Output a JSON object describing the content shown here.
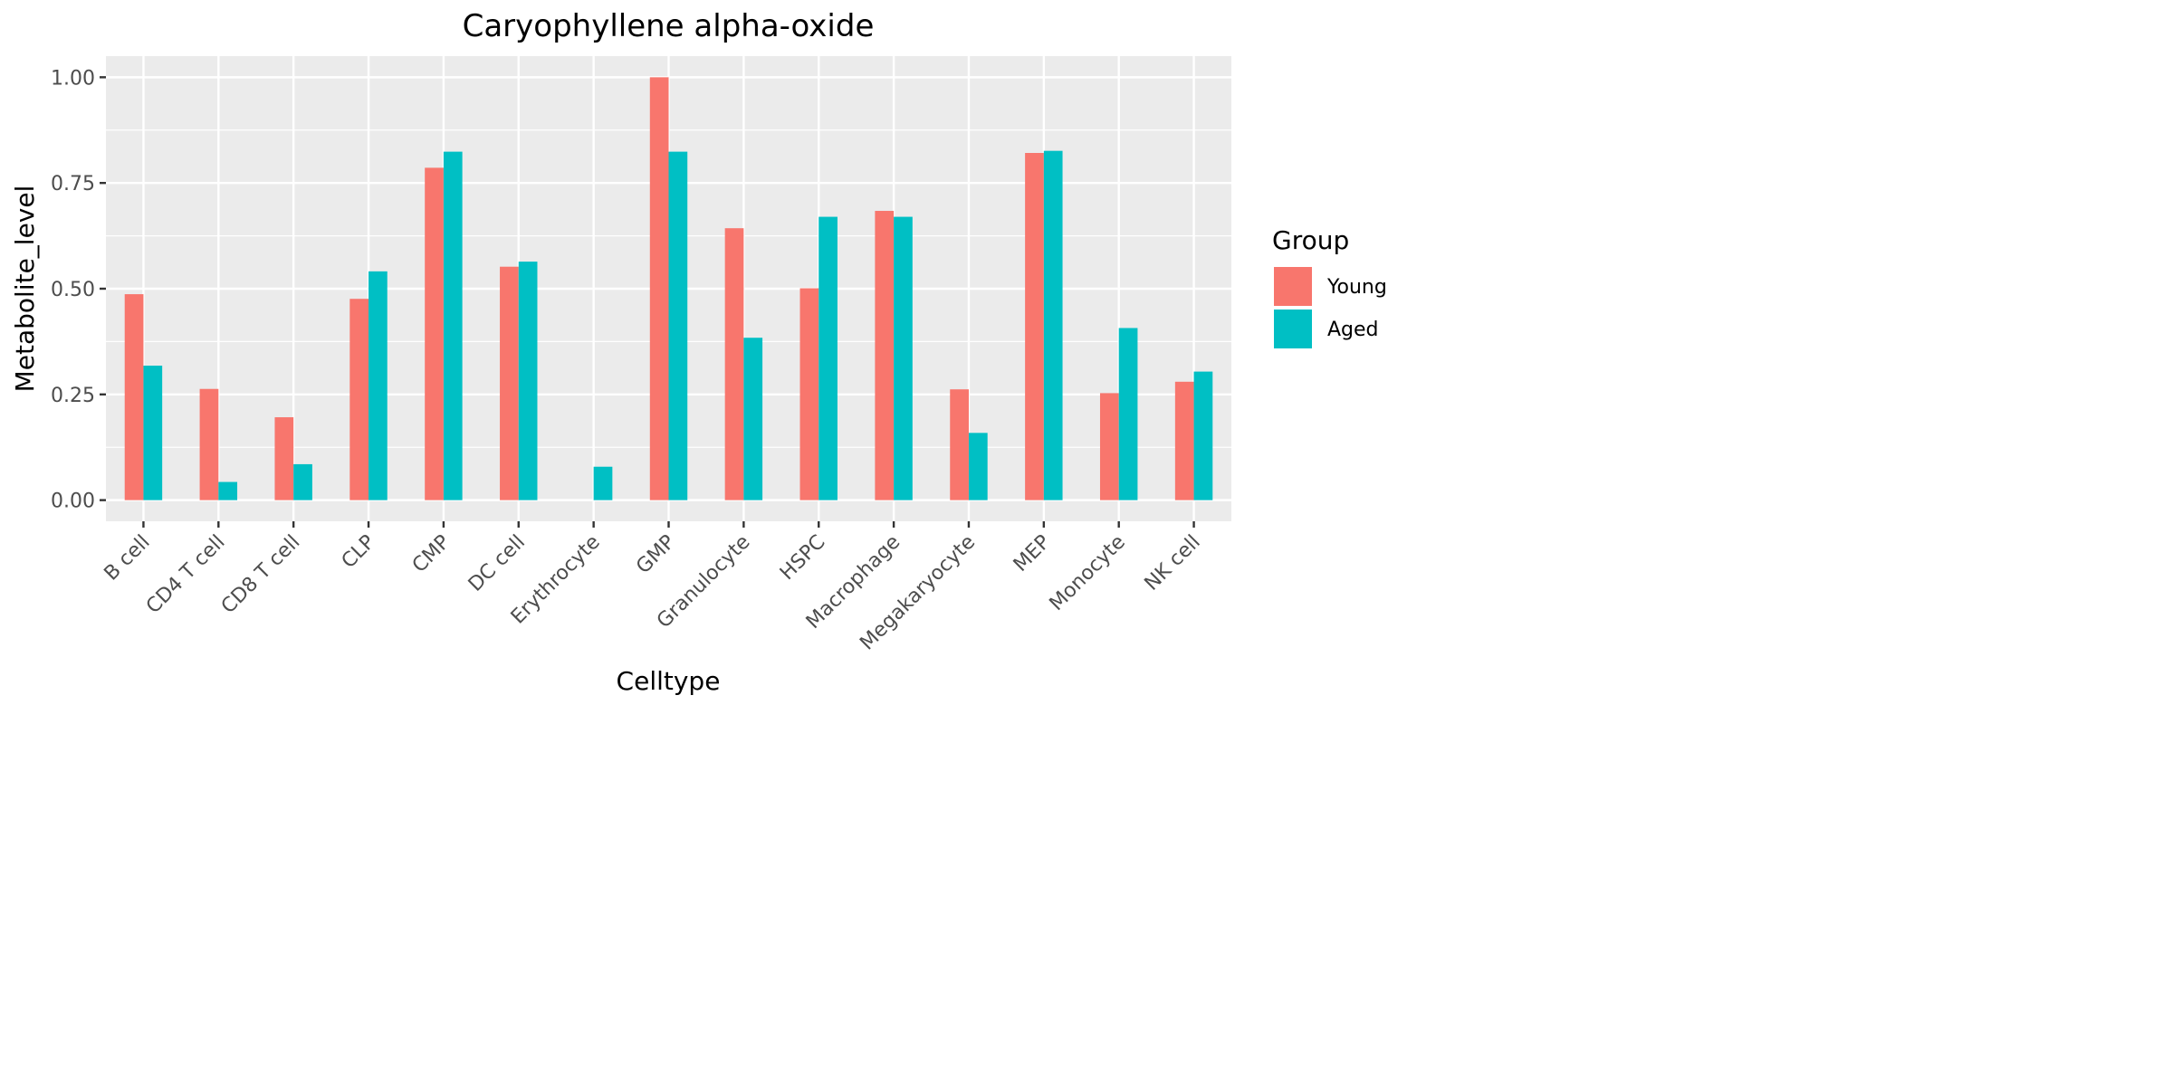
{
  "chart_data": {
    "type": "bar",
    "title": "Caryophyllene alpha-oxide",
    "xlabel": "Celltype",
    "ylabel": "Metabolite_level",
    "ylim": [
      -0.05,
      1.05
    ],
    "yticks": [
      0.0,
      0.25,
      0.5,
      0.75,
      1.0
    ],
    "ytick_labels": [
      "0.00",
      "0.25",
      "0.50",
      "0.75",
      "1.00"
    ],
    "grid": true,
    "legend": {
      "title": "Group",
      "position": "right"
    },
    "categories": [
      "B cell",
      "CD4 T cell",
      "CD8 T cell",
      "CLP",
      "CMP",
      "DC cell",
      "Erythrocyte",
      "GMP",
      "Granulocyte",
      "HSPC",
      "Macrophage",
      "Megakaryocyte",
      "MEP",
      "Monocyte",
      "NK cell"
    ],
    "series": [
      {
        "name": "Young",
        "color": "#F8766D",
        "values": [
          0.487,
          0.263,
          0.196,
          0.476,
          0.786,
          0.552,
          0.0,
          1.0,
          0.643,
          0.501,
          0.684,
          0.262,
          0.821,
          0.253,
          0.28
        ]
      },
      {
        "name": "Aged",
        "color": "#00BFC4",
        "values": [
          0.318,
          0.043,
          0.085,
          0.541,
          0.824,
          0.564,
          0.079,
          0.824,
          0.384,
          0.67,
          0.67,
          0.159,
          0.826,
          0.407,
          0.304
        ]
      }
    ]
  },
  "colors": {
    "panel_background": "#EBEBEB",
    "grid_line": "#FFFFFF",
    "tick_color": "#333333"
  }
}
